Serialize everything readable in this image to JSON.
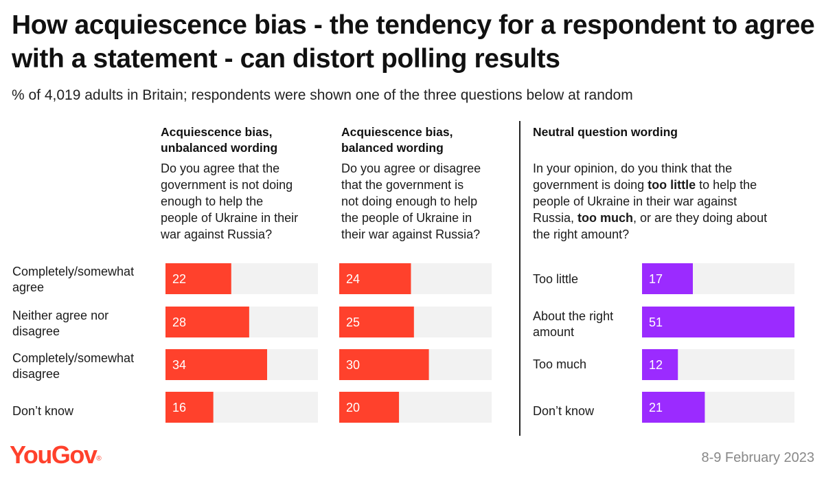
{
  "title": "How acquiescence bias - the tendency for a respondent to agree with a statement - can distort polling results",
  "subtitle": "% of 4,019 adults in Britain; respondents were shown one of the three questions below at random",
  "colors": {
    "red": "#ff412c",
    "purple": "#9b2bff",
    "track": "#f2f2f2",
    "logo": "#ff412c"
  },
  "footer": {
    "brand": "YouGov",
    "date": "8-9 February 2023"
  },
  "chart_data": {
    "type": "bar",
    "xlim": [
      0,
      51
    ],
    "panels": [
      {
        "heading": [
          "Acquiescence bias,",
          "unbalanced wording"
        ],
        "question": [
          "Do you agree that the",
          "government is not doing",
          "enough to help the",
          "people of Ukraine in their",
          "war against Russia?"
        ],
        "categories": [
          "Completely/somewhat agree",
          "Neither agree nor disagree",
          "Completely/somewhat disagree",
          "Don’t know"
        ],
        "values": [
          22,
          28,
          34,
          16
        ],
        "color": "#ff412c"
      },
      {
        "heading": [
          "Acquiescence bias,",
          "balanced wording"
        ],
        "question": [
          "Do you agree or disagree",
          "that the government is",
          "not doing enough to help",
          "the people of Ukraine in",
          "their war against Russia?"
        ],
        "categories": [
          "Completely/somewhat agree",
          "Neither agree nor disagree",
          "Completely/somewhat disagree",
          "Don’t know"
        ],
        "values": [
          24,
          25,
          30,
          20
        ],
        "color": "#ff412c"
      },
      {
        "heading": [
          "Neutral question wording"
        ],
        "question": [
          "In your opinion, do you think that the",
          "government is doing too little to help the",
          "people of Ukraine in their war against",
          "Russia, too much, or are they doing about",
          "the right amount?"
        ],
        "question_bold": [
          "too little",
          "too much"
        ],
        "categories": [
          "Too little",
          "About the right amount",
          "Too much",
          "Don’t know"
        ],
        "values": [
          17,
          51,
          12,
          21
        ],
        "color": "#9b2bff"
      }
    ]
  },
  "row_labels_left": [
    [
      "Completely/somewhat",
      "agree"
    ],
    [
      "Neither agree nor",
      "disagree"
    ],
    [
      "Completely/somewhat",
      "disagree"
    ],
    [
      "Don’t know"
    ]
  ],
  "row_labels_right": [
    [
      "Too little"
    ],
    [
      "About the right",
      "amount"
    ],
    [
      "Too much"
    ],
    [
      "Don’t know"
    ]
  ]
}
